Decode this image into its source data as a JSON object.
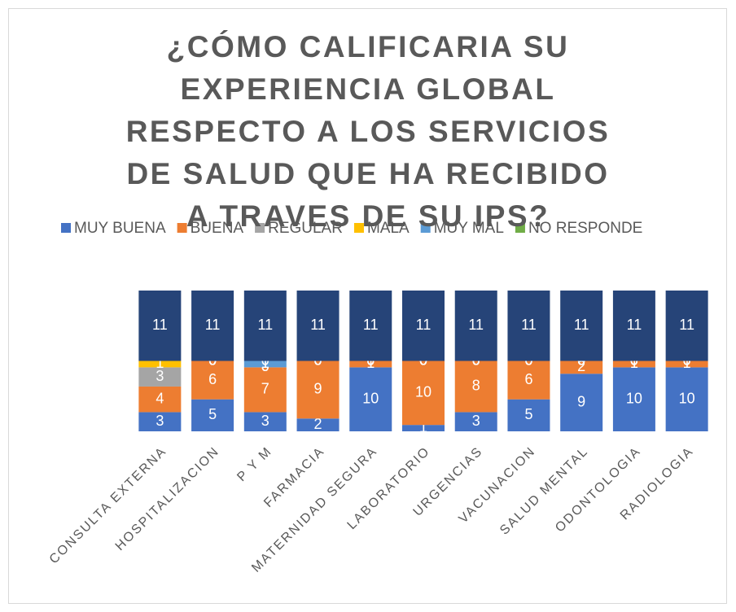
{
  "chart_data": {
    "type": "stacked_bar",
    "title": "¿CÓMO CALIFICARIA SU EXPERIENCIA GLOBAL RESPECTO A LOS SERVICIOS DE SALUD QUE HA RECIBIDO A TRAVES DE SU IPS?",
    "categories": [
      "CONSULTA EXTERNA",
      "HOSPITALIZACION",
      "P Y M",
      "FARMACIA",
      "MATERNIDAD SEGURA",
      "LABORATORIO",
      "URGENCIAS",
      "VACUNACION",
      "SALUD MENTAL",
      "ODONTOLOGIA",
      "RADIOLOGIA"
    ],
    "series": [
      {
        "name": "MUY BUENA",
        "color": "#4472c4",
        "values": [
          3,
          5,
          3,
          2,
          10,
          1,
          3,
          5,
          9,
          10,
          10
        ]
      },
      {
        "name": "BUENA",
        "color": "#ed7d31",
        "values": [
          4,
          6,
          7,
          9,
          1,
          10,
          8,
          6,
          2,
          1,
          1
        ]
      },
      {
        "name": "REGULAR",
        "color": "#a5a5a5",
        "values": [
          3,
          0,
          0,
          0,
          0,
          0,
          0,
          0,
          0,
          0,
          0
        ]
      },
      {
        "name": "MALA",
        "color": "#ffc000",
        "values": [
          1,
          0,
          0,
          0,
          0,
          0,
          0,
          0,
          0,
          0,
          0
        ]
      },
      {
        "name": "MUY MAL",
        "color": "#5b9bd5",
        "values": [
          null,
          0,
          1,
          0,
          0,
          0,
          0,
          0,
          0,
          0,
          0
        ]
      },
      {
        "name": "NO RESPONDE",
        "color": "#70ad47",
        "values": [
          null,
          0,
          0,
          0,
          0,
          0,
          0,
          0,
          0,
          0,
          0
        ]
      },
      {
        "color": "#264478",
        "values": [
          11,
          11,
          11,
          11,
          11,
          11,
          11,
          11,
          11,
          11,
          11
        ]
      }
    ],
    "ylim": [
      0,
      22
    ]
  }
}
